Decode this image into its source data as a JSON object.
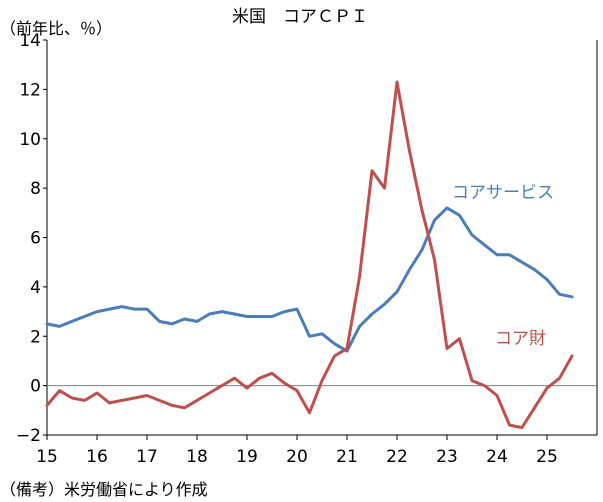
{
  "chart_data": {
    "type": "line",
    "title": "米国　コアＣＰＩ",
    "ylabel": "（前年比、％）",
    "source": "（備考）米労働省により作成",
    "ylim": [
      -2,
      14
    ],
    "yticks": [
      -2,
      0,
      2,
      4,
      6,
      8,
      10,
      12,
      14
    ],
    "ytick_labels": [
      "−2",
      "0",
      "2",
      "4",
      "6",
      "8",
      "10",
      "12",
      "14"
    ],
    "xlim": [
      2015.0,
      2026.0
    ],
    "xticks": [
      2015,
      2016,
      2017,
      2018,
      2019,
      2020,
      2021,
      2022,
      2023,
      2024,
      2025
    ],
    "xtick_labels": [
      "15",
      "16",
      "17",
      "18",
      "19",
      "20",
      "21",
      "22",
      "23",
      "24",
      "25"
    ],
    "zero_line": true,
    "grid": false,
    "series": [
      {
        "name": "コアサービス",
        "color": "#4a7ebb",
        "points": [
          [
            2015.0,
            2.5
          ],
          [
            2015.25,
            2.4
          ],
          [
            2015.5,
            2.6
          ],
          [
            2015.75,
            2.8
          ],
          [
            2016.0,
            3.0
          ],
          [
            2016.25,
            3.1
          ],
          [
            2016.5,
            3.2
          ],
          [
            2016.75,
            3.1
          ],
          [
            2017.0,
            3.1
          ],
          [
            2017.25,
            2.6
          ],
          [
            2017.5,
            2.5
          ],
          [
            2017.75,
            2.7
          ],
          [
            2018.0,
            2.6
          ],
          [
            2018.25,
            2.9
          ],
          [
            2018.5,
            3.0
          ],
          [
            2018.75,
            2.9
          ],
          [
            2019.0,
            2.8
          ],
          [
            2019.25,
            2.8
          ],
          [
            2019.5,
            2.8
          ],
          [
            2019.75,
            3.0
          ],
          [
            2020.0,
            3.1
          ],
          [
            2020.25,
            2.0
          ],
          [
            2020.5,
            2.1
          ],
          [
            2020.75,
            1.7
          ],
          [
            2021.0,
            1.4
          ],
          [
            2021.25,
            2.4
          ],
          [
            2021.5,
            2.9
          ],
          [
            2021.75,
            3.3
          ],
          [
            2022.0,
            3.8
          ],
          [
            2022.25,
            4.7
          ],
          [
            2022.5,
            5.5
          ],
          [
            2022.75,
            6.7
          ],
          [
            2023.0,
            7.2
          ],
          [
            2023.25,
            6.9
          ],
          [
            2023.5,
            6.1
          ],
          [
            2023.75,
            5.7
          ],
          [
            2024.0,
            5.3
          ],
          [
            2024.25,
            5.3
          ],
          [
            2024.5,
            5.0
          ],
          [
            2024.75,
            4.7
          ],
          [
            2025.0,
            4.3
          ],
          [
            2025.25,
            3.7
          ],
          [
            2025.5,
            3.6
          ]
        ]
      },
      {
        "name": "コア財",
        "color": "#c0504d",
        "points": [
          [
            2015.0,
            -0.8
          ],
          [
            2015.25,
            -0.2
          ],
          [
            2015.5,
            -0.5
          ],
          [
            2015.75,
            -0.6
          ],
          [
            2016.0,
            -0.3
          ],
          [
            2016.25,
            -0.7
          ],
          [
            2016.5,
            -0.6
          ],
          [
            2016.75,
            -0.5
          ],
          [
            2017.0,
            -0.4
          ],
          [
            2017.25,
            -0.6
          ],
          [
            2017.5,
            -0.8
          ],
          [
            2017.75,
            -0.9
          ],
          [
            2018.0,
            -0.6
          ],
          [
            2018.25,
            -0.3
          ],
          [
            2018.5,
            0.0
          ],
          [
            2018.75,
            0.3
          ],
          [
            2019.0,
            -0.1
          ],
          [
            2019.25,
            0.3
          ],
          [
            2019.5,
            0.5
          ],
          [
            2019.75,
            0.1
          ],
          [
            2020.0,
            -0.2
          ],
          [
            2020.25,
            -1.1
          ],
          [
            2020.5,
            0.2
          ],
          [
            2020.75,
            1.2
          ],
          [
            2021.0,
            1.5
          ],
          [
            2021.25,
            4.4
          ],
          [
            2021.5,
            8.7
          ],
          [
            2021.75,
            8.0
          ],
          [
            2022.0,
            12.3
          ],
          [
            2022.25,
            9.5
          ],
          [
            2022.5,
            7.1
          ],
          [
            2022.75,
            5.1
          ],
          [
            2023.0,
            1.5
          ],
          [
            2023.25,
            1.9
          ],
          [
            2023.5,
            0.2
          ],
          [
            2023.75,
            0.0
          ],
          [
            2024.0,
            -0.4
          ],
          [
            2024.25,
            -1.6
          ],
          [
            2024.5,
            -1.7
          ],
          [
            2024.75,
            -0.9
          ],
          [
            2025.0,
            -0.1
          ],
          [
            2025.25,
            0.3
          ],
          [
            2025.5,
            1.2
          ]
        ]
      }
    ]
  }
}
